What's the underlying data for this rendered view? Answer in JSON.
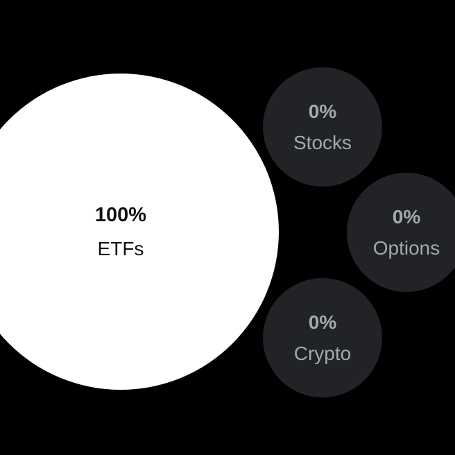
{
  "allocation": {
    "etfs": {
      "percent": "100%",
      "label": "ETFs"
    },
    "stocks": {
      "percent": "0%",
      "label": "Stocks"
    },
    "options": {
      "percent": "0%",
      "label": "Options"
    },
    "crypto": {
      "percent": "0%",
      "label": "Crypto"
    }
  },
  "colors": {
    "background": "#000000",
    "selected_bubble": "#ffffff",
    "unselected_bubble": "#222326",
    "unselected_text": "#a4a8ad"
  }
}
